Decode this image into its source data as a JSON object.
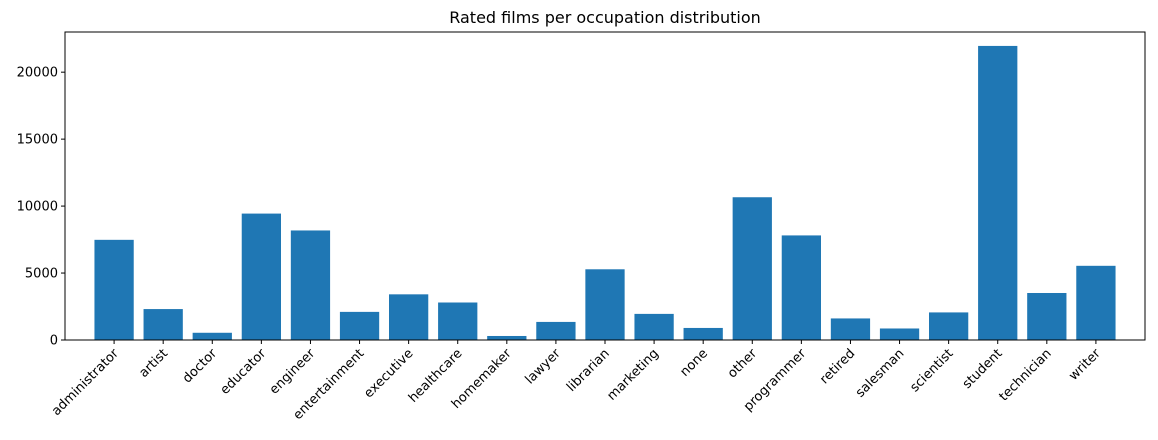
{
  "chart_data": {
    "type": "bar",
    "title": "Rated films per occupation distribution",
    "xlabel": "",
    "ylabel": "",
    "categories": [
      "administrator",
      "artist",
      "doctor",
      "educator",
      "engineer",
      "entertainment",
      "executive",
      "healthcare",
      "homemaker",
      "lawyer",
      "librarian",
      "marketing",
      "none",
      "other",
      "programmer",
      "retired",
      "salesman",
      "scientist",
      "student",
      "technician",
      "writer"
    ],
    "values": [
      7480,
      2310,
      540,
      9440,
      8180,
      2100,
      3410,
      2800,
      300,
      1350,
      5280,
      1950,
      900,
      10660,
      7810,
      1610,
      860,
      2060,
      21960,
      3510,
      5540
    ],
    "ylim": [
      0,
      23000
    ],
    "yticks": [
      0,
      5000,
      10000,
      15000,
      20000
    ],
    "x_tick_rotation_deg": 45,
    "grid": false,
    "legend": "none",
    "bar_color": "#1f77b4"
  }
}
